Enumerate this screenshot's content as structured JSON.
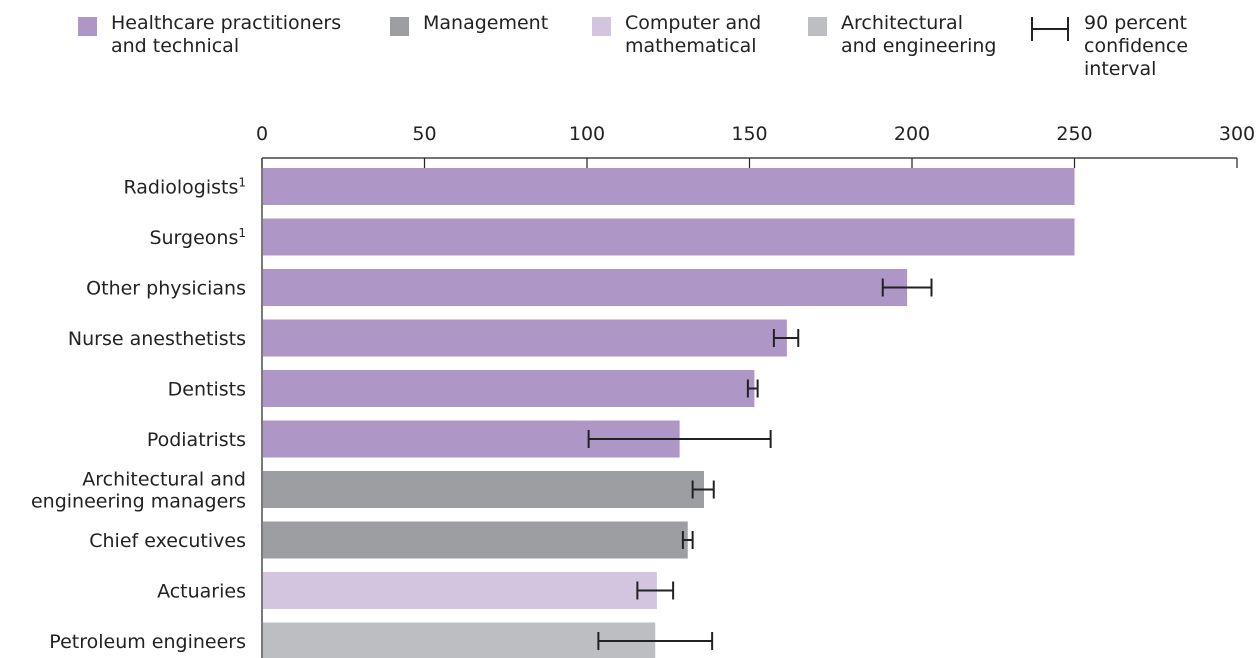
{
  "legend": {
    "items": [
      {
        "label": "Healthcare practitioners\nand technical",
        "color": "#ae97c6"
      },
      {
        "label": "Management",
        "color": "#9d9ea1"
      },
      {
        "label": "Computer and\nmathematical",
        "color": "#d3c5e0"
      },
      {
        "label": "Architectural\nand engineering",
        "color": "#bdbec1"
      }
    ],
    "ci_label": "90 percent\nconfidence\ninterval"
  },
  "chart_data": {
    "type": "bar",
    "orientation": "horizontal",
    "xlim": [
      0,
      300
    ],
    "xticks": [
      0,
      50,
      100,
      150,
      200,
      250,
      300
    ],
    "tick_labels": [
      "0",
      "50",
      "100",
      "150",
      "200",
      "250",
      "300"
    ],
    "axis_position": "top",
    "grid": false,
    "legend_placement": "top",
    "bars": [
      {
        "label": "Radiologists¹",
        "group": "Healthcare practitioners and technical",
        "value": 250,
        "ci": null
      },
      {
        "label": "Surgeons¹",
        "group": "Healthcare practitioners and technical",
        "value": 250,
        "ci": null
      },
      {
        "label": "Other physicians",
        "group": "Healthcare practitioners and technical",
        "value": 198.5,
        "ci": [
          191,
          206
        ]
      },
      {
        "label": "Nurse anesthetists",
        "group": "Healthcare practitioners and technical",
        "value": 161.5,
        "ci": [
          157.5,
          165
        ]
      },
      {
        "label": "Dentists",
        "group": "Healthcare practitioners and technical",
        "value": 151.5,
        "ci": [
          149.5,
          152.5
        ]
      },
      {
        "label": "Podiatrists",
        "group": "Healthcare practitioners and technical",
        "value": 128.5,
        "ci": [
          100.5,
          156.5
        ]
      },
      {
        "label": "Architectural and\nengineering managers",
        "group": "Management",
        "value": 136,
        "ci": [
          132.5,
          139
        ]
      },
      {
        "label": "Chief executives",
        "group": "Management",
        "value": 131,
        "ci": [
          129.5,
          132.5
        ]
      },
      {
        "label": "Actuaries",
        "group": "Computer and mathematical",
        "value": 121.5,
        "ci": [
          115.5,
          126.5
        ]
      },
      {
        "label": "Petroleum engineers",
        "group": "Architectural and engineering",
        "value": 121,
        "ci": [
          103.5,
          138.5
        ]
      }
    ]
  }
}
